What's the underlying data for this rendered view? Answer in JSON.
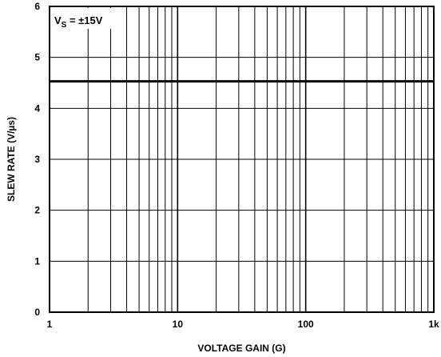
{
  "chart_data": {
    "type": "line",
    "title": "",
    "xlabel": "VOLTAGE GAIN (G)",
    "ylabel": "SLEW RATE (V/µs)",
    "x_scale": "log",
    "xlim": [
      1,
      1000
    ],
    "ylim": [
      0,
      6
    ],
    "grid": true,
    "x_tick_labels": [
      "1",
      "10",
      "100",
      "1k"
    ],
    "y_tick_labels": [
      "0",
      "1",
      "2",
      "3",
      "4",
      "5",
      "6"
    ],
    "annotation": {
      "prefix": "V",
      "subscript": "S",
      "suffix": " = ±15V"
    },
    "series": [
      {
        "x": [
          1,
          1000
        ],
        "y": [
          4.53,
          4.53
        ]
      }
    ]
  }
}
